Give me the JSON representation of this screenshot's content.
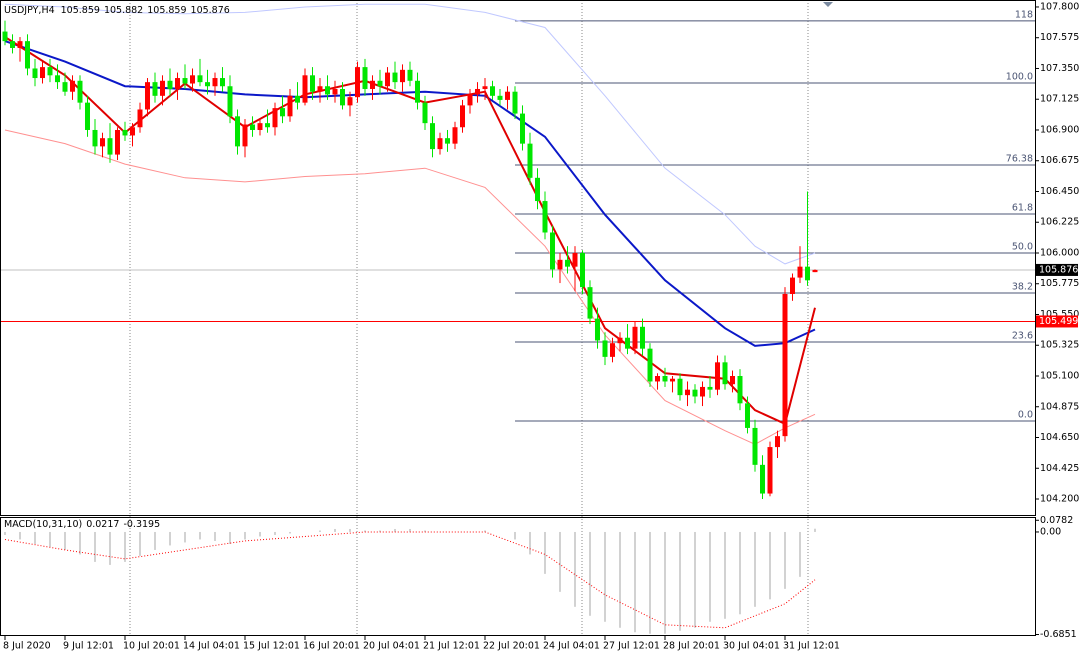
{
  "chart_data": {
    "type": "candlestick",
    "symbol": "USDJPY,H4",
    "ohlc": [
      105.859,
      105.882,
      105.859,
      105.876
    ],
    "up_color": "#ff0000",
    "down_color": "#00e600",
    "xlim": [
      -0.6667,
      137.3333
    ],
    "ylim": [
      104.083,
      107.851
    ],
    "yticks": [
      {
        "value": 107.8,
        "label": "107.800"
      },
      {
        "value": 107.575,
        "label": "107.575"
      },
      {
        "value": 107.35,
        "label": "107.350"
      },
      {
        "value": 107.125,
        "label": "107.125"
      },
      {
        "value": 106.9,
        "label": "106.900"
      },
      {
        "value": 106.675,
        "label": "106.675"
      },
      {
        "value": 106.45,
        "label": "106.450"
      },
      {
        "value": 106.225,
        "label": "106.225"
      },
      {
        "value": 106,
        "label": "106.000"
      },
      {
        "value": 105.775,
        "label": "105.775"
      },
      {
        "value": 105.55,
        "label": "105.550"
      },
      {
        "value": 105.325,
        "label": "105.325"
      },
      {
        "value": 105.1,
        "label": "105.100"
      },
      {
        "value": 104.875,
        "label": "104.875"
      },
      {
        "value": 104.65,
        "label": "104.650"
      },
      {
        "value": 104.425,
        "label": "104.425"
      },
      {
        "value": 104.2,
        "label": "104.200"
      }
    ],
    "xticks": [
      {
        "value": 0,
        "label": "8 Jul 2020"
      },
      {
        "value": 8,
        "label": "9 Jul 12:01"
      },
      {
        "value": 16,
        "label": "10 Jul 20:01"
      },
      {
        "value": 24,
        "label": "14 Jul 04:01"
      },
      {
        "value": 32,
        "label": "15 Jul 12:01"
      },
      {
        "value": 40,
        "label": "16 Jul 20:01"
      },
      {
        "value": 48,
        "label": "20 Jul 04:01"
      },
      {
        "value": 56,
        "label": "21 Jul 12:01"
      },
      {
        "value": 64,
        "label": "22 Jul 20:01"
      },
      {
        "value": 72,
        "label": "24 Jul 04:01"
      },
      {
        "value": 80,
        "label": "27 Jul 12:01"
      },
      {
        "value": 88,
        "label": "28 Jul 20:01"
      },
      {
        "value": 96,
        "label": "30 Jul 04:01"
      },
      {
        "value": 104,
        "label": "31 Jul 12:01"
      }
    ],
    "candles": [
      [
        107.62,
        107.7,
        107.52,
        107.55
      ],
      [
        107.55,
        107.6,
        107.46,
        107.5
      ],
      [
        107.5,
        107.58,
        107.4,
        107.55
      ],
      [
        107.55,
        107.6,
        107.3,
        107.35
      ],
      [
        107.35,
        107.42,
        107.22,
        107.28
      ],
      [
        107.28,
        107.4,
        107.24,
        107.36
      ],
      [
        107.36,
        107.42,
        107.25,
        107.3
      ],
      [
        107.3,
        107.38,
        107.2,
        107.25
      ],
      [
        107.25,
        107.32,
        107.15,
        107.18
      ],
      [
        107.18,
        107.3,
        107.12,
        107.26
      ],
      [
        107.26,
        107.3,
        107.05,
        107.1
      ],
      [
        107.1,
        107.15,
        106.85,
        106.9
      ],
      [
        106.9,
        106.98,
        106.72,
        106.78
      ],
      [
        106.78,
        106.88,
        106.7,
        106.84
      ],
      [
        106.84,
        106.95,
        106.66,
        106.72
      ],
      [
        106.72,
        106.92,
        106.68,
        106.9
      ],
      [
        106.9,
        106.96,
        106.82,
        106.86
      ],
      [
        106.86,
        106.95,
        106.78,
        106.92
      ],
      [
        106.92,
        107.1,
        106.88,
        107.05
      ],
      [
        107.05,
        107.28,
        107.0,
        107.25
      ],
      [
        107.25,
        107.32,
        107.1,
        107.15
      ],
      [
        107.15,
        107.3,
        107.08,
        107.26
      ],
      [
        107.26,
        107.35,
        107.15,
        107.2
      ],
      [
        107.2,
        107.32,
        107.12,
        107.28
      ],
      [
        107.28,
        107.38,
        107.2,
        107.24
      ],
      [
        107.24,
        107.35,
        107.18,
        107.3
      ],
      [
        107.3,
        107.42,
        107.22,
        107.25
      ],
      [
        107.25,
        107.34,
        107.16,
        107.22
      ],
      [
        107.22,
        107.32,
        107.15,
        107.28
      ],
      [
        107.28,
        107.36,
        107.18,
        107.22
      ],
      [
        107.22,
        107.3,
        106.95,
        107.0
      ],
      [
        107.0,
        107.05,
        106.72,
        106.78
      ],
      [
        106.78,
        106.98,
        106.7,
        106.94
      ],
      [
        106.94,
        107.0,
        106.85,
        106.9
      ],
      [
        106.9,
        106.98,
        106.86,
        106.95
      ],
      [
        106.95,
        107.05,
        106.88,
        106.92
      ],
      [
        106.92,
        107.1,
        106.86,
        107.06
      ],
      [
        107.06,
        107.15,
        106.95,
        107.0
      ],
      [
        107.0,
        107.2,
        106.96,
        107.15
      ],
      [
        107.15,
        107.25,
        107.05,
        107.1
      ],
      [
        107.1,
        107.35,
        107.08,
        107.3
      ],
      [
        107.3,
        107.36,
        107.12,
        107.18
      ],
      [
        107.18,
        107.28,
        107.1,
        107.22
      ],
      [
        107.22,
        107.3,
        107.12,
        107.16
      ],
      [
        107.16,
        107.26,
        107.1,
        107.2
      ],
      [
        107.2,
        107.25,
        107.05,
        107.08
      ],
      [
        107.08,
        107.18,
        107.0,
        107.14
      ],
      [
        107.14,
        107.4,
        107.1,
        107.36
      ],
      [
        107.36,
        107.42,
        107.15,
        107.2
      ],
      [
        107.2,
        107.3,
        107.12,
        107.26
      ],
      [
        107.26,
        107.34,
        107.16,
        107.22
      ],
      [
        107.22,
        107.36,
        107.18,
        107.32
      ],
      [
        107.32,
        107.4,
        107.2,
        107.25
      ],
      [
        107.25,
        107.38,
        107.18,
        107.34
      ],
      [
        107.34,
        107.4,
        107.22,
        107.26
      ],
      [
        107.26,
        107.32,
        107.05,
        107.1
      ],
      [
        107.1,
        107.15,
        106.9,
        106.95
      ],
      [
        106.95,
        107.0,
        106.7,
        106.76
      ],
      [
        106.76,
        106.88,
        106.72,
        106.84
      ],
      [
        106.84,
        106.9,
        106.74,
        106.8
      ],
      [
        106.8,
        106.96,
        106.76,
        106.92
      ],
      [
        106.92,
        107.12,
        106.88,
        107.08
      ],
      [
        107.08,
        107.2,
        107.02,
        107.16
      ],
      [
        107.16,
        107.25,
        107.1,
        107.2
      ],
      [
        107.2,
        107.28,
        107.12,
        107.22
      ],
      [
        107.22,
        107.26,
        107.12,
        107.15
      ],
      [
        107.15,
        107.2,
        107.08,
        107.12
      ],
      [
        107.12,
        107.22,
        107.05,
        107.18
      ],
      [
        107.18,
        107.22,
        106.98,
        107.02
      ],
      [
        107.02,
        107.08,
        106.75,
        106.8
      ],
      [
        106.8,
        106.88,
        106.5,
        106.55
      ],
      [
        106.55,
        106.62,
        106.32,
        106.38
      ],
      [
        106.38,
        106.45,
        106.1,
        106.15
      ],
      [
        106.15,
        106.2,
        105.82,
        105.88
      ],
      [
        105.88,
        106.0,
        105.78,
        105.95
      ],
      [
        105.95,
        106.05,
        105.85,
        105.9
      ],
      [
        105.9,
        106.05,
        105.72,
        106.0
      ],
      [
        106.0,
        106.02,
        105.7,
        105.75
      ],
      [
        105.75,
        105.8,
        105.48,
        105.52
      ],
      [
        105.52,
        105.6,
        105.3,
        105.36
      ],
      [
        105.36,
        105.42,
        105.18,
        105.24
      ],
      [
        105.24,
        105.38,
        105.2,
        105.34
      ],
      [
        105.34,
        105.42,
        105.28,
        105.38
      ],
      [
        105.38,
        105.48,
        105.26,
        105.3
      ],
      [
        105.3,
        105.5,
        105.26,
        105.46
      ],
      [
        105.46,
        105.52,
        105.25,
        105.3
      ],
      [
        105.3,
        105.34,
        105.02,
        105.06
      ],
      [
        105.06,
        105.12,
        105.0,
        105.1
      ],
      [
        105.1,
        105.16,
        105.02,
        105.06
      ],
      [
        105.06,
        105.1,
        104.98,
        105.08
      ],
      [
        105.08,
        105.12,
        104.92,
        104.96
      ],
      [
        104.96,
        105.06,
        104.88,
        105.0
      ],
      [
        105.0,
        105.04,
        104.9,
        104.95
      ],
      [
        104.95,
        105.06,
        104.88,
        105.02
      ],
      [
        105.02,
        105.1,
        104.94,
        105.0
      ],
      [
        105.0,
        105.25,
        104.96,
        105.2
      ],
      [
        105.2,
        105.25,
        105.0,
        105.04
      ],
      [
        105.04,
        105.14,
        104.98,
        105.1
      ],
      [
        105.1,
        105.15,
        104.85,
        104.9
      ],
      [
        104.9,
        104.95,
        104.68,
        104.72
      ],
      [
        104.72,
        104.78,
        104.4,
        104.45
      ],
      [
        104.45,
        104.52,
        104.2,
        104.24
      ],
      [
        104.24,
        104.62,
        104.22,
        104.58
      ],
      [
        104.58,
        104.7,
        104.5,
        104.66
      ],
      [
        104.66,
        105.75,
        104.62,
        105.7
      ],
      [
        105.7,
        105.85,
        105.65,
        105.82
      ],
      [
        105.82,
        106.05,
        105.78,
        105.9
      ],
      [
        105.9,
        106.45,
        105.76,
        105.8
      ],
      [
        105.86,
        105.88,
        105.86,
        105.876
      ]
    ],
    "series": [
      {
        "color": "#c0c8ff",
        "x": [
          0,
          8,
          16,
          24,
          32,
          40,
          48,
          56,
          64,
          72,
          80,
          88,
          96,
          100,
          104,
          108
        ],
        "values": [
          107.82,
          107.8,
          107.76,
          107.75,
          107.76,
          107.8,
          107.82,
          107.82,
          107.76,
          107.65,
          107.15,
          106.62,
          106.28,
          106.05,
          105.92,
          106.0
        ]
      },
      {
        "color": "#ff9090",
        "x": [
          0,
          8,
          16,
          24,
          32,
          40,
          48,
          56,
          64,
          72,
          80,
          88,
          96,
          100,
          104,
          108
        ],
        "values": [
          106.9,
          106.8,
          106.65,
          106.55,
          106.52,
          106.56,
          106.58,
          106.62,
          106.48,
          106.05,
          105.4,
          104.92,
          104.7,
          104.6,
          104.72,
          104.82
        ]
      },
      {
        "color": "#0b18c8",
        "x": [
          0,
          8,
          16,
          24,
          32,
          40,
          48,
          56,
          64,
          72,
          80,
          88,
          96,
          100,
          104,
          108
        ],
        "values": [
          107.55,
          107.4,
          107.22,
          107.2,
          107.16,
          107.14,
          107.16,
          107.18,
          107.15,
          106.85,
          106.28,
          105.8,
          105.45,
          105.32,
          105.34,
          105.44
        ]
      },
      {
        "color": "#e00000",
        "x": [
          0,
          8,
          16,
          24,
          32,
          40,
          48,
          56,
          64,
          72,
          80,
          88,
          96,
          100,
          104,
          108
        ],
        "values": [
          107.58,
          107.3,
          106.88,
          107.24,
          106.92,
          107.16,
          107.26,
          107.1,
          107.18,
          106.3,
          105.45,
          105.12,
          105.08,
          104.85,
          104.75,
          105.6
        ]
      }
    ],
    "fib_color": "#4b5574",
    "fib_levels": [
      {
        "label": "118",
        "price": 107.698
      },
      {
        "label": "100.0",
        "price": 107.244
      },
      {
        "label": "76.38",
        "price": 106.644
      },
      {
        "label": "61.8",
        "price": 106.285
      },
      {
        "label": "50.0",
        "price": 106.0
      },
      {
        "label": "38.2",
        "price": 105.707
      },
      {
        "label": "23.6",
        "price": 105.349
      },
      {
        "label": "0.0",
        "price": 104.771
      }
    ],
    "last_price": {
      "value": 105.876,
      "label": "105.876"
    },
    "line_price": {
      "value": 105.499,
      "label": "105.499"
    },
    "macd": {
      "name": "MACD(10,31,10)",
      "main_value": 0.0217,
      "signal_value": -0.3195,
      "ylim": [
        -0.695,
        0.1
      ],
      "yticks": [
        0.0782,
        {
          "value": 0,
          "label": "0.00"
        },
        -0.6851
      ],
      "x": [
        0,
        2,
        4,
        6,
        8,
        10,
        12,
        14,
        16,
        18,
        20,
        22,
        24,
        26,
        28,
        30,
        32,
        34,
        36,
        38,
        40,
        42,
        44,
        46,
        48,
        50,
        52,
        54,
        56,
        58,
        60,
        62,
        64,
        66,
        68,
        70,
        72,
        74,
        76,
        78,
        80,
        82,
        84,
        86,
        88,
        90,
        92,
        94,
        96,
        98,
        100,
        102,
        104,
        106,
        108
      ],
      "histogram": [
        -0.02,
        -0.05,
        -0.08,
        -0.1,
        -0.12,
        -0.15,
        -0.2,
        -0.22,
        -0.2,
        -0.16,
        -0.12,
        -0.09,
        -0.07,
        -0.05,
        -0.06,
        -0.08,
        -0.05,
        -0.03,
        -0.02,
        -0.01,
        0.0,
        0.01,
        0.02,
        0.02,
        0.01,
        0.01,
        0.02,
        0.02,
        0.01,
        0.0,
        0.0,
        0.0,
        0.01,
        0.0,
        -0.05,
        -0.15,
        -0.28,
        -0.4,
        -0.5,
        -0.56,
        -0.6,
        -0.64,
        -0.67,
        -0.68,
        -0.68,
        -0.66,
        -0.64,
        -0.6,
        -0.58,
        -0.55,
        -0.5,
        -0.45,
        -0.38,
        -0.3,
        0.0217
      ],
      "signal": {
        "color": "#ff0000",
        "x": [
          0,
          8,
          16,
          24,
          32,
          40,
          48,
          56,
          64,
          72,
          80,
          88,
          96,
          104,
          108
        ],
        "values": [
          -0.05,
          -0.12,
          -0.18,
          -0.12,
          -0.06,
          -0.03,
          0.0,
          0.0,
          0.0,
          -0.15,
          -0.42,
          -0.62,
          -0.64,
          -0.48,
          -0.3195
        ]
      }
    }
  }
}
